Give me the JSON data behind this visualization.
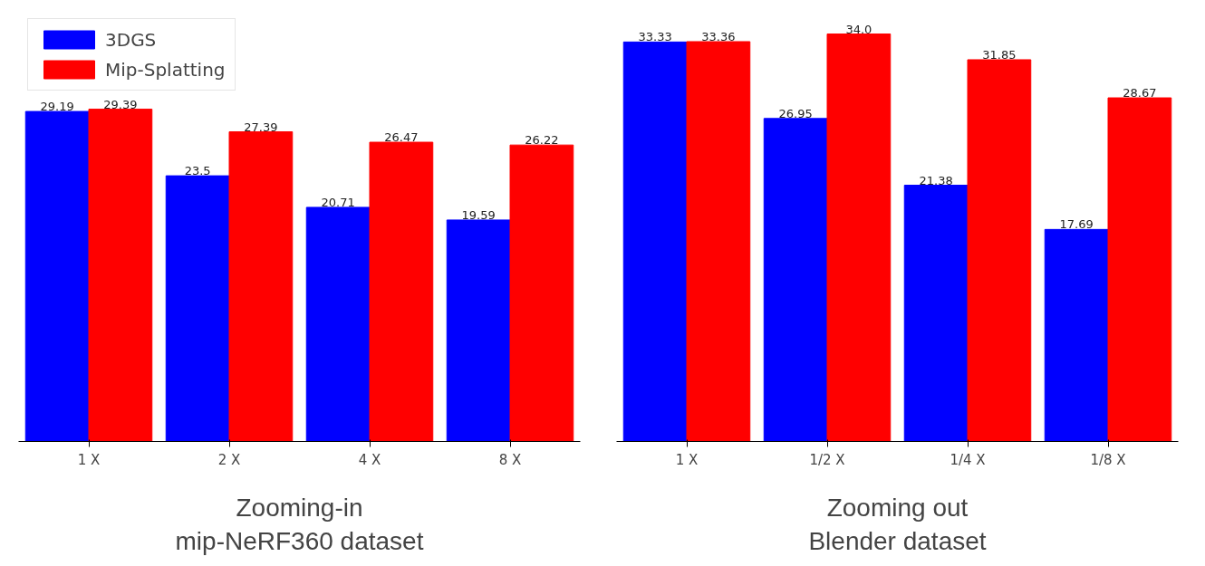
{
  "chart_data": [
    {
      "type": "bar",
      "xlabel": "Zooming-in\nmip-NeRF360 dataset",
      "categories": [
        "1 X",
        "2 X",
        "4 X",
        "8 X"
      ],
      "data_labels": true,
      "legend": "top left",
      "grid": false,
      "series": [
        {
          "name": "3DGS",
          "color": "#0000ff",
          "values": [
            29.19,
            23.5,
            20.71,
            19.59
          ]
        },
        {
          "name": "Mip-Splatting",
          "color": "#ff0000",
          "values": [
            29.39,
            27.39,
            26.47,
            26.22
          ]
        }
      ]
    },
    {
      "type": "bar",
      "xlabel": "Zooming out\nBlender dataset",
      "categories": [
        "1 X",
        "1/2 X",
        "1/4 X",
        "1/8 X"
      ],
      "data_labels": true,
      "grid": false,
      "series": [
        {
          "color": "#0000ff",
          "values": [
            33.33,
            26.95,
            21.38,
            17.69
          ]
        },
        {
          "color": "#ff0000",
          "values": [
            33.36,
            34.0,
            31.85,
            28.67
          ],
          "value_labels": [
            "33.36",
            "34.0",
            "31.85",
            "28.67"
          ]
        }
      ]
    }
  ]
}
